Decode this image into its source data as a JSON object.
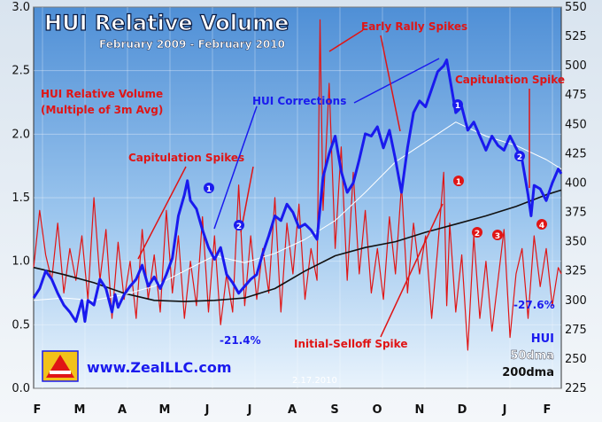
{
  "chart_data": {
    "type": "line",
    "title": "HUI Relative Volume",
    "subtitle": "February 2009 - February 2010",
    "left_axis_label": [
      "HUI Relative Volume",
      "(Multiple of 3m Avg)"
    ],
    "left_ylim": [
      0.0,
      3.0
    ],
    "left_ticks": [
      "0.0",
      "0.5",
      "1.0",
      "1.5",
      "2.0",
      "2.5",
      "3.0"
    ],
    "right_ylim": [
      225,
      550
    ],
    "right_ticks": [
      "225",
      "250",
      "275",
      "300",
      "325",
      "350",
      "375",
      "400",
      "425",
      "450",
      "475",
      "500",
      "525",
      "550"
    ],
    "x_labels": [
      "F",
      "M",
      "A",
      "M",
      "J",
      "J",
      "A",
      "S",
      "O",
      "N",
      "D",
      "J",
      "F"
    ],
    "grid": true,
    "series": [
      {
        "name": "HUI",
        "axis": "right",
        "color": "#1a1aee",
        "points": [
          [
            0,
            302
          ],
          [
            2,
            310
          ],
          [
            4,
            325
          ],
          [
            6,
            318
          ],
          [
            8,
            306
          ],
          [
            10,
            296
          ],
          [
            12,
            290
          ],
          [
            14,
            282
          ],
          [
            16,
            300
          ],
          [
            17,
            282
          ],
          [
            18,
            300
          ],
          [
            20,
            296
          ],
          [
            22,
            318
          ],
          [
            24,
            310
          ],
          [
            26,
            290
          ],
          [
            27,
            305
          ],
          [
            28,
            294
          ],
          [
            30,
            305
          ],
          [
            32,
            312
          ],
          [
            34,
            318
          ],
          [
            36,
            330
          ],
          [
            38,
            312
          ],
          [
            40,
            320
          ],
          [
            42,
            310
          ],
          [
            44,
            322
          ],
          [
            46,
            336
          ],
          [
            48,
            372
          ],
          [
            50,
            390
          ],
          [
            51,
            402
          ],
          [
            52,
            385
          ],
          [
            54,
            378
          ],
          [
            56,
            360
          ],
          [
            58,
            345
          ],
          [
            60,
            335
          ],
          [
            62,
            345
          ],
          [
            64,
            322
          ],
          [
            66,
            315
          ],
          [
            68,
            306
          ],
          [
            70,
            312
          ],
          [
            72,
            318
          ],
          [
            74,
            322
          ],
          [
            76,
            340
          ],
          [
            78,
            355
          ],
          [
            80,
            372
          ],
          [
            82,
            368
          ],
          [
            84,
            382
          ],
          [
            86,
            375
          ],
          [
            88,
            362
          ],
          [
            90,
            365
          ],
          [
            92,
            360
          ],
          [
            94,
            352
          ],
          [
            96,
            405
          ],
          [
            98,
            425
          ],
          [
            100,
            440
          ],
          [
            102,
            410
          ],
          [
            104,
            392
          ],
          [
            106,
            400
          ],
          [
            108,
            420
          ],
          [
            110,
            442
          ],
          [
            112,
            440
          ],
          [
            114,
            448
          ],
          [
            116,
            430
          ],
          [
            118,
            445
          ],
          [
            120,
            420
          ],
          [
            122,
            392
          ],
          [
            124,
            430
          ],
          [
            126,
            460
          ],
          [
            128,
            470
          ],
          [
            130,
            465
          ],
          [
            132,
            480
          ],
          [
            134,
            495
          ],
          [
            136,
            500
          ],
          [
            137,
            505
          ],
          [
            138,
            490
          ],
          [
            140,
            460
          ],
          [
            142,
            465
          ],
          [
            144,
            445
          ],
          [
            146,
            452
          ],
          [
            148,
            440
          ],
          [
            150,
            428
          ],
          [
            152,
            440
          ],
          [
            154,
            432
          ],
          [
            156,
            428
          ],
          [
            158,
            440
          ],
          [
            160,
            430
          ],
          [
            162,
            420
          ],
          [
            164,
            390
          ],
          [
            165,
            372
          ],
          [
            166,
            398
          ],
          [
            168,
            395
          ],
          [
            170,
            385
          ],
          [
            172,
            400
          ],
          [
            174,
            412
          ],
          [
            175,
            408
          ]
        ]
      },
      {
        "name": "HUI Relative Volume",
        "axis": "left",
        "color": "#e01515",
        "points": [
          [
            0,
            0.95
          ],
          [
            2,
            1.4
          ],
          [
            4,
            1.05
          ],
          [
            6,
            0.85
          ],
          [
            8,
            1.3
          ],
          [
            10,
            0.75
          ],
          [
            12,
            1.1
          ],
          [
            14,
            0.85
          ],
          [
            16,
            1.2
          ],
          [
            18,
            0.7
          ],
          [
            20,
            1.5
          ],
          [
            22,
            0.85
          ],
          [
            24,
            1.25
          ],
          [
            26,
            0.55
          ],
          [
            28,
            1.15
          ],
          [
            30,
            0.7
          ],
          [
            32,
            1.0
          ],
          [
            34,
            0.55
          ],
          [
            36,
            1.25
          ],
          [
            38,
            0.7
          ],
          [
            40,
            1.05
          ],
          [
            42,
            0.6
          ],
          [
            44,
            1.4
          ],
          [
            46,
            0.75
          ],
          [
            48,
            1.2
          ],
          [
            50,
            0.55
          ],
          [
            52,
            1.0
          ],
          [
            54,
            0.65
          ],
          [
            56,
            1.35
          ],
          [
            58,
            0.6
          ],
          [
            60,
            1.2
          ],
          [
            62,
            0.5
          ],
          [
            64,
            0.9
          ],
          [
            66,
            0.6
          ],
          [
            68,
            1.6
          ],
          [
            70,
            0.65
          ],
          [
            72,
            1.2
          ],
          [
            74,
            0.7
          ],
          [
            76,
            1.1
          ],
          [
            78,
            0.75
          ],
          [
            80,
            1.5
          ],
          [
            82,
            0.6
          ],
          [
            84,
            1.3
          ],
          [
            86,
            0.9
          ],
          [
            88,
            1.45
          ],
          [
            90,
            0.7
          ],
          [
            92,
            1.1
          ],
          [
            94,
            0.85
          ],
          [
            95,
            2.9
          ],
          [
            96,
            1.4
          ],
          [
            98,
            2.4
          ],
          [
            100,
            1.1
          ],
          [
            102,
            1.9
          ],
          [
            104,
            0.85
          ],
          [
            106,
            1.7
          ],
          [
            108,
            0.9
          ],
          [
            110,
            1.4
          ],
          [
            112,
            0.75
          ],
          [
            114,
            1.1
          ],
          [
            116,
            0.7
          ],
          [
            118,
            1.35
          ],
          [
            120,
            0.9
          ],
          [
            122,
            1.6
          ],
          [
            124,
            0.75
          ],
          [
            126,
            1.3
          ],
          [
            128,
            0.9
          ],
          [
            130,
            1.2
          ],
          [
            132,
            0.55
          ],
          [
            134,
            1.1
          ],
          [
            136,
            1.7
          ],
          [
            137,
            0.65
          ],
          [
            138,
            1.3
          ],
          [
            140,
            0.6
          ],
          [
            142,
            1.05
          ],
          [
            144,
            0.3
          ],
          [
            146,
            1.2
          ],
          [
            148,
            0.55
          ],
          [
            150,
            1.0
          ],
          [
            152,
            0.45
          ],
          [
            154,
            0.85
          ],
          [
            156,
            1.25
          ],
          [
            158,
            0.4
          ],
          [
            160,
            0.9
          ],
          [
            162,
            1.1
          ],
          [
            164,
            0.55
          ],
          [
            166,
            1.2
          ],
          [
            168,
            0.8
          ],
          [
            170,
            1.1
          ],
          [
            172,
            0.65
          ],
          [
            174,
            0.95
          ],
          [
            175,
            0.9
          ]
        ]
      },
      {
        "name": "50dma",
        "axis": "right",
        "color": "#ffffff",
        "points": [
          [
            0,
            300
          ],
          [
            10,
            302
          ],
          [
            20,
            300
          ],
          [
            30,
            305
          ],
          [
            40,
            312
          ],
          [
            50,
            325
          ],
          [
            60,
            338
          ],
          [
            70,
            332
          ],
          [
            80,
            340
          ],
          [
            90,
            352
          ],
          [
            100,
            368
          ],
          [
            110,
            392
          ],
          [
            120,
            418
          ],
          [
            130,
            435
          ],
          [
            140,
            452
          ],
          [
            150,
            440
          ],
          [
            160,
            432
          ],
          [
            170,
            420
          ],
          [
            175,
            412
          ]
        ]
      },
      {
        "name": "200dma",
        "axis": "right",
        "color": "#111111",
        "points": [
          [
            0,
            328
          ],
          [
            10,
            322
          ],
          [
            20,
            315
          ],
          [
            30,
            306
          ],
          [
            40,
            300
          ],
          [
            50,
            299
          ],
          [
            60,
            300
          ],
          [
            70,
            302
          ],
          [
            80,
            310
          ],
          [
            90,
            325
          ],
          [
            100,
            338
          ],
          [
            110,
            345
          ],
          [
            120,
            350
          ],
          [
            130,
            358
          ],
          [
            140,
            365
          ],
          [
            150,
            372
          ],
          [
            160,
            380
          ],
          [
            170,
            390
          ],
          [
            175,
            394
          ]
        ]
      }
    ],
    "annotations": [
      {
        "text": "Capitulation Spikes",
        "color": "#e01515"
      },
      {
        "text": "HUI Corrections",
        "color": "#1a1aee"
      },
      {
        "text": "Early Rally Spikes",
        "color": "#e01515"
      },
      {
        "text": "Capitulation Spike",
        "color": "#e01515"
      },
      {
        "text": "Initial-Selloff Spike",
        "color": "#e01515"
      },
      {
        "text": "-21.4%",
        "color": "#1a1aee"
      },
      {
        "text": "-27.6%",
        "color": "#1a1aee"
      }
    ],
    "markers_blue": [
      "1",
      "2",
      "1",
      "2"
    ],
    "markers_red": [
      "1",
      "2",
      "3",
      "4"
    ],
    "legend_labels": [
      "HUI",
      "50dma",
      "200dma"
    ],
    "website": "www.ZealLLC.com",
    "date_stamp": "2.17.2010"
  }
}
